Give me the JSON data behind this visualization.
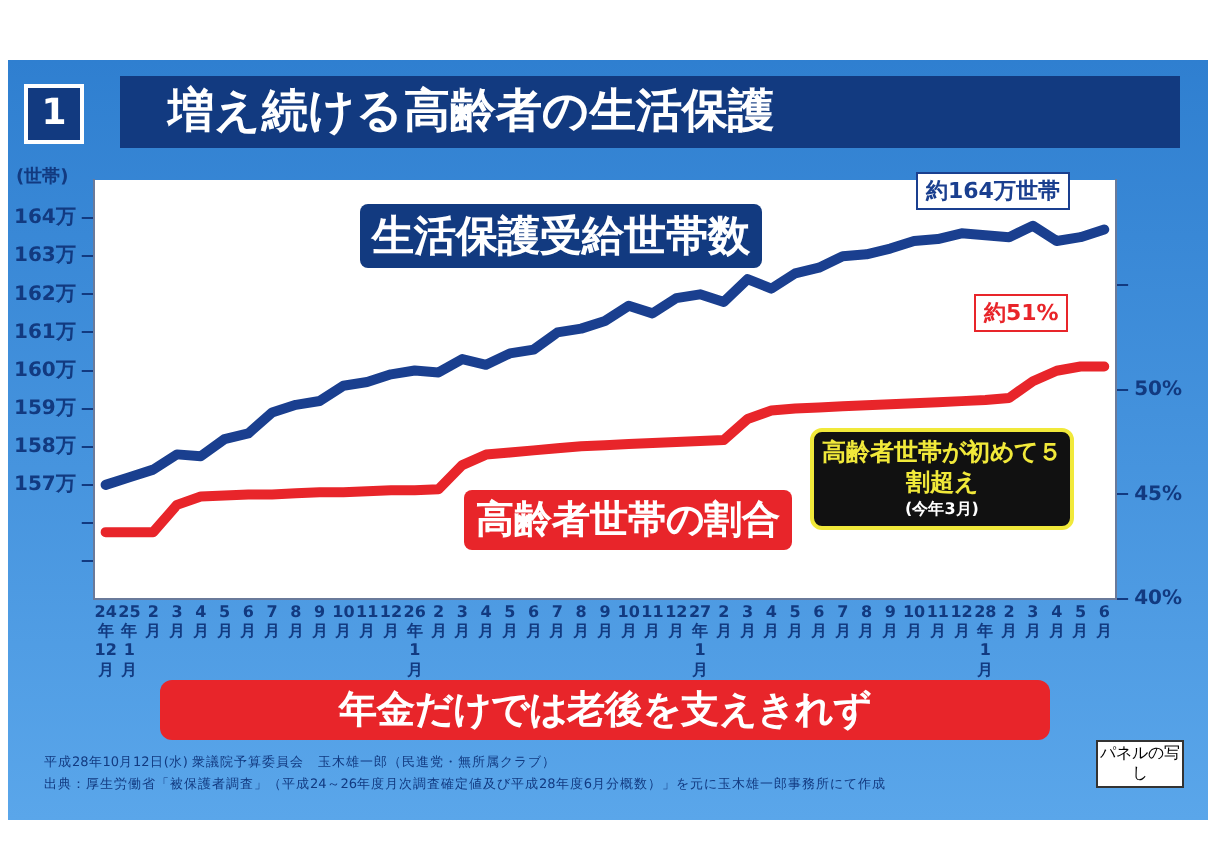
{
  "chart_data": {
    "type": "line",
    "title": "増え続ける高齢者の生活保護",
    "ylabel": "(世帯)",
    "categories": [
      "24年12月",
      "25年1月",
      "2月",
      "3月",
      "4月",
      "5月",
      "6月",
      "7月",
      "8月",
      "9月",
      "10月",
      "11月",
      "12月",
      "26年1月",
      "2月",
      "3月",
      "4月",
      "5月",
      "6月",
      "7月",
      "8月",
      "9月",
      "10月",
      "11月",
      "12月",
      "27年1月",
      "2月",
      "3月",
      "4月",
      "5月",
      "6月",
      "7月",
      "8月",
      "9月",
      "10月",
      "11月",
      "12月",
      "28年1月",
      "2月",
      "3月",
      "4月",
      "5月",
      "6月"
    ],
    "series": [
      {
        "name": "生活保護受給世帯数",
        "color": "#1a3f8f",
        "values": [
          157.0,
          157.2,
          157.4,
          157.8,
          157.75,
          158.2,
          158.35,
          158.9,
          159.1,
          159.2,
          159.6,
          159.7,
          159.9,
          160.0,
          159.95,
          160.3,
          160.15,
          160.45,
          160.55,
          161.0,
          161.1,
          161.3,
          161.7,
          161.5,
          161.9,
          162.0,
          161.8,
          162.4,
          162.15,
          162.55,
          162.7,
          163.0,
          163.05,
          163.2,
          163.4,
          163.45,
          163.6,
          163.55,
          163.5,
          163.8,
          163.4,
          163.5,
          163.7
        ]
      },
      {
        "name": "高齢者世帯の割合",
        "color": "#e8252a",
        "axis": "y2",
        "values": [
          43.2,
          43.2,
          43.2,
          44.5,
          44.9,
          44.95,
          45.0,
          45.0,
          45.05,
          45.1,
          45.1,
          45.15,
          45.2,
          45.2,
          45.25,
          46.4,
          46.9,
          47.0,
          47.1,
          47.2,
          47.3,
          47.35,
          47.4,
          47.45,
          47.5,
          47.55,
          47.6,
          48.6,
          49.0,
          49.1,
          49.15,
          49.2,
          49.25,
          49.3,
          49.35,
          49.4,
          49.45,
          49.5,
          49.6,
          50.4,
          50.9,
          51.1,
          51.1
        ]
      }
    ],
    "ylim": [
      154,
      165
    ],
    "yticks": [
      {
        "value": 155,
        "label": null
      },
      {
        "value": 156,
        "label": null
      },
      {
        "value": 157,
        "label": "157万"
      },
      {
        "value": 158,
        "label": "158万"
      },
      {
        "value": 159,
        "label": "159万"
      },
      {
        "value": 160,
        "label": "160万"
      },
      {
        "value": 161,
        "label": "161万"
      },
      {
        "value": 162,
        "label": "162万"
      },
      {
        "value": 163,
        "label": "163万"
      },
      {
        "value": 164,
        "label": "164万"
      }
    ],
    "y2lim": [
      40,
      60
    ],
    "y2ticks": [
      {
        "value": 40,
        "label": "40%"
      },
      {
        "value": 45,
        "label": "45%"
      },
      {
        "value": 50,
        "label": "50%"
      },
      {
        "value": 55,
        "label": null
      }
    ],
    "grid": false,
    "legend": false,
    "marker": "none",
    "line_style": "solid",
    "annotations": [
      "1",
      "約164万世帯",
      "約51%",
      "高齢者世帯が初めて５割超え",
      "(今年3月)",
      "年金だけでは老後を支えきれず",
      "平成28年10月12日(水) 衆議院予算委員会　玉木雄一郎（民進党・無所属クラブ）",
      "出典：厚生労働省「被保護者調査」（平成24～26年度月次調査確定値及び平成28年度6月分概数）」を元に玉木雄一郎事務所にて作成",
      "パネルの写し"
    ]
  }
}
